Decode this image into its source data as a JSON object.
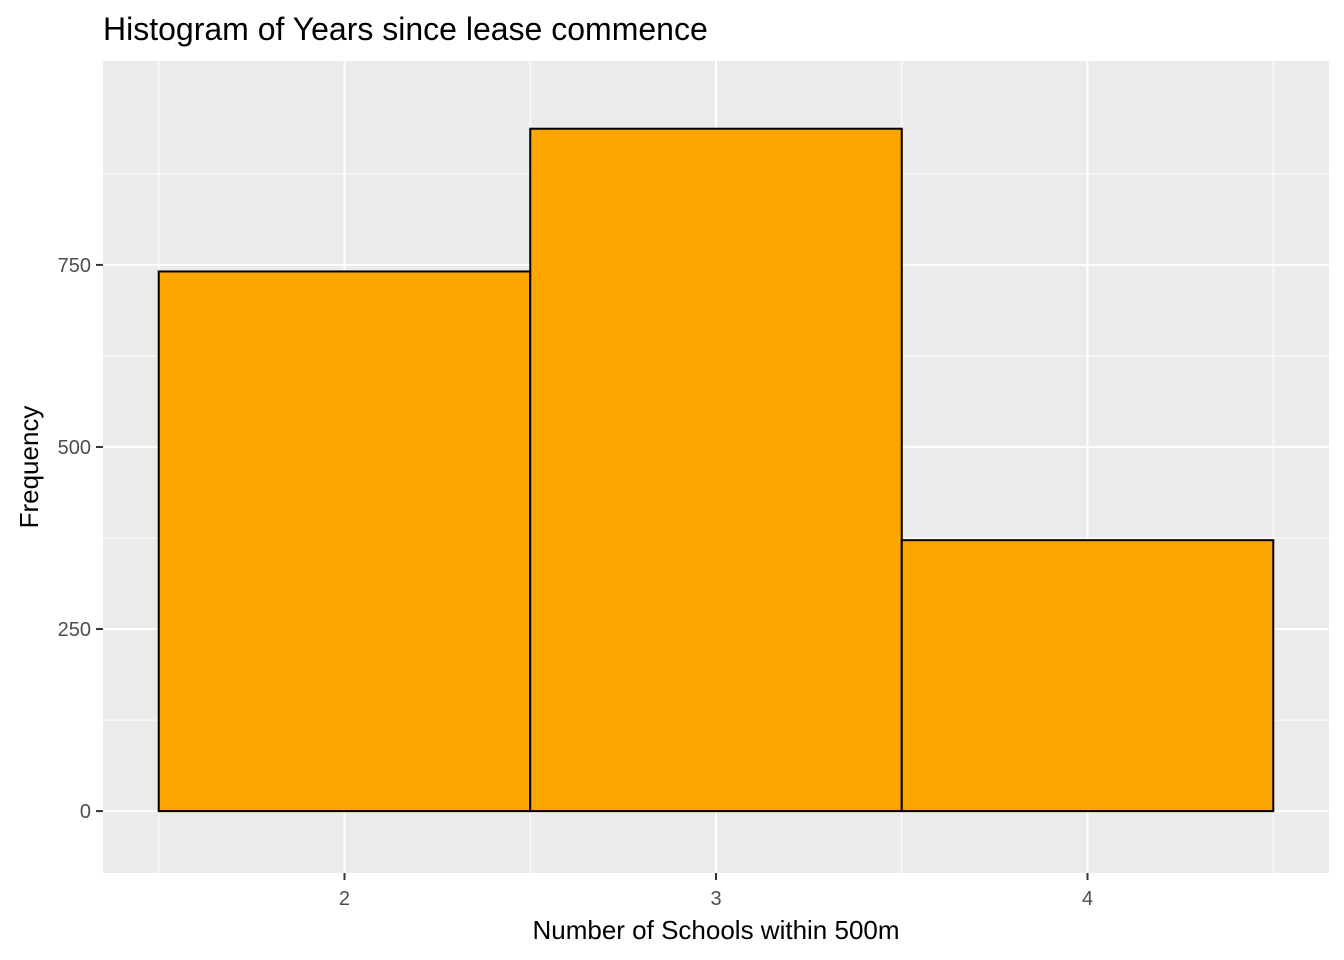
{
  "chart_data": {
    "type": "bar",
    "title": "Histogram of Years since lease commence",
    "xlabel": "Number of Schools within 500m",
    "ylabel": "Frequency",
    "bins": [
      {
        "x0": 1.5,
        "x1": 2.5,
        "value": 741
      },
      {
        "x0": 2.5,
        "x1": 3.5,
        "value": 937
      },
      {
        "x0": 3.5,
        "x1": 4.5,
        "value": 372
      }
    ],
    "xlim": [
      1.35,
      4.65
    ],
    "ylim": [
      -85,
      1030
    ],
    "xticks": [
      2,
      3,
      4
    ],
    "yticks": [
      0,
      250,
      500,
      750
    ],
    "ygrid_minor": [
      125,
      375,
      625,
      875
    ],
    "grid": true,
    "legend": "none",
    "colors": {
      "panel": "#ebebeb",
      "grid": "#ffffff",
      "bar_fill": "#ffa500",
      "bar_stroke": "#000000"
    }
  }
}
